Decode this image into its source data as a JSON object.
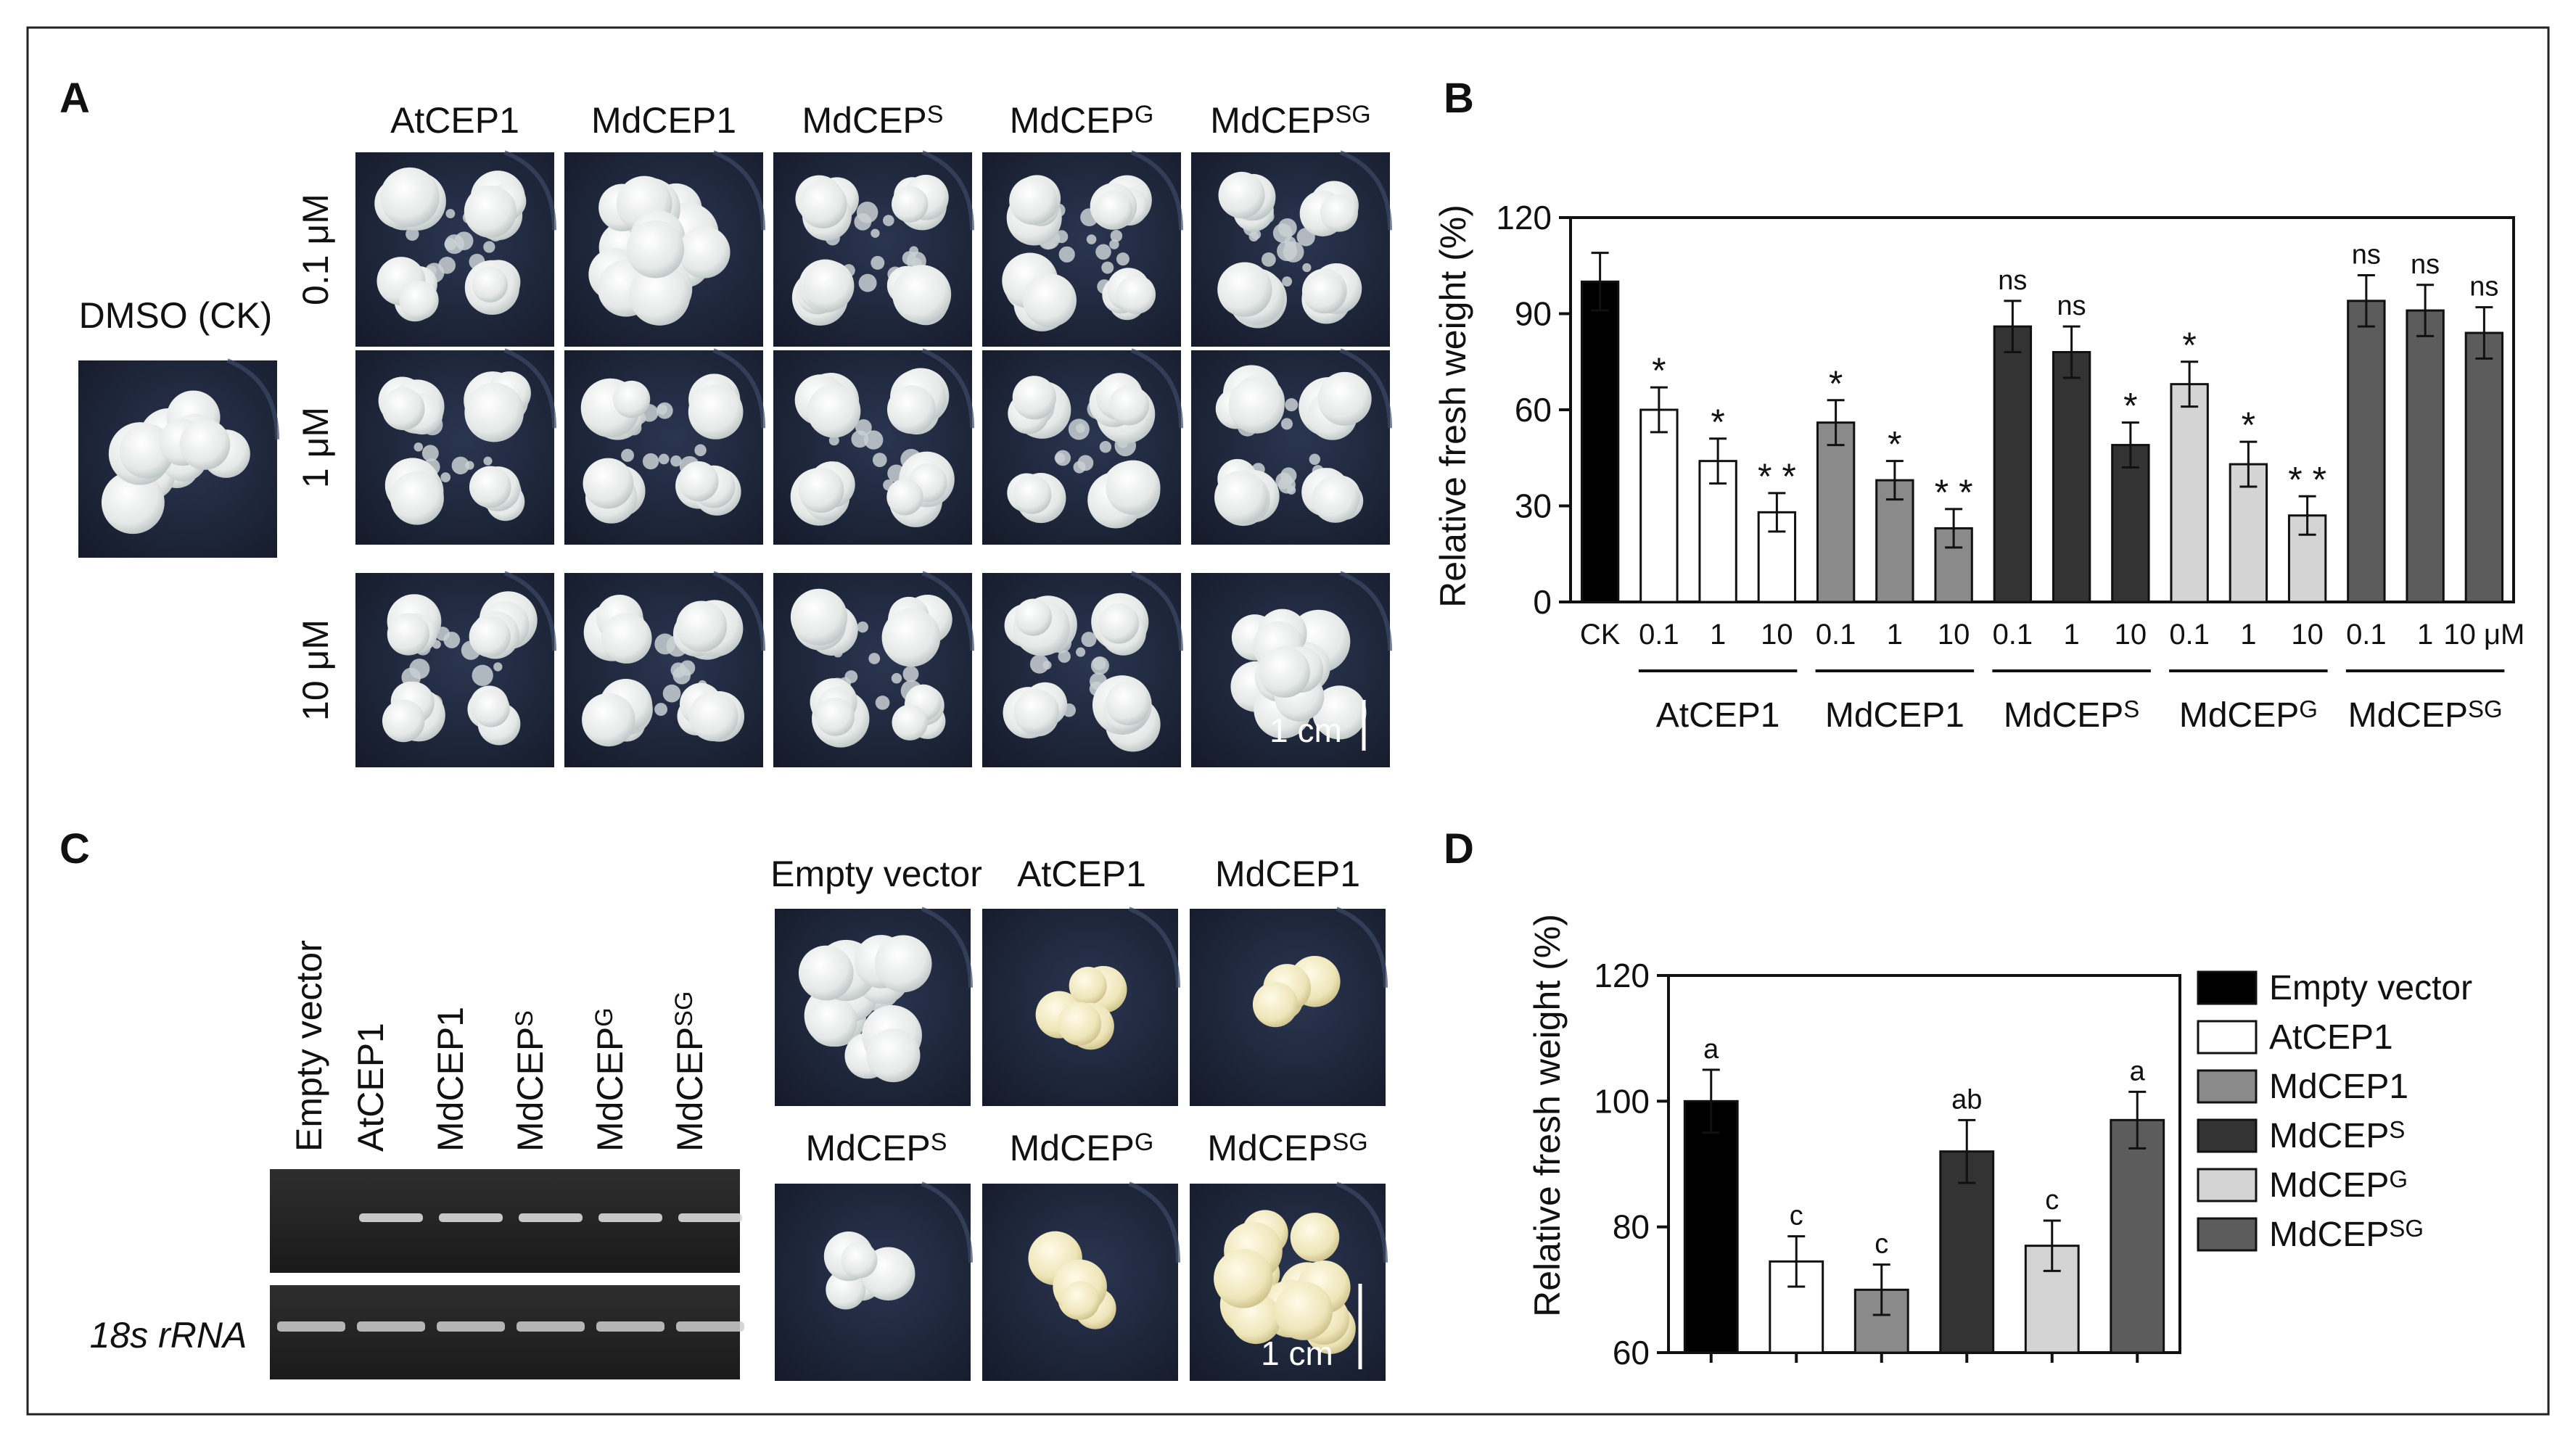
{
  "panel_letters": [
    "A",
    "B",
    "C",
    "D"
  ],
  "panelA": {
    "columns": [
      "AtCEP1",
      "MdCEP1",
      "MdCEPS",
      "MdCEPG",
      "MdCEPSG"
    ],
    "rows": [
      "0.1 μM",
      "1 μM",
      "10 μM"
    ],
    "control_label": "DMSO (CK)",
    "scale_label": "1 cm",
    "photo_colors": {
      "background": "#1c2436",
      "callus": "#e6e9e7"
    }
  },
  "panelC": {
    "lane_labels": [
      "Empty vector",
      "AtCEP1",
      "MdCEP1",
      "MdCEPS",
      "MdCEPG",
      "MdCEPSG"
    ],
    "gel_row_label": "18s rRNA",
    "photo_labels_top": [
      "Empty vector",
      "AtCEP1",
      "MdCEP1"
    ],
    "photo_labels_bottom": [
      "MdCEPS",
      "MdCEPG",
      "MdCEPSG"
    ],
    "scale_label": "1 cm"
  },
  "chart_data": [
    {
      "type": "bar",
      "panel": "B",
      "ylabel": "Relative fresh weight (%)",
      "ylim": [
        0,
        120
      ],
      "yticks": [
        0,
        30,
        60,
        90,
        120
      ],
      "tick_labels": [
        "CK",
        "0.1",
        "1",
        "10",
        "0.1",
        "1",
        "10",
        "0.1",
        "1",
        "10",
        "0.1",
        "1",
        "10",
        "0.1",
        "1",
        "10 μM"
      ],
      "groups": [
        "AtCEP1",
        "MdCEP1",
        "MdCEPS",
        "MdCEPG",
        "MdCEPSG"
      ],
      "values": [
        100,
        60,
        44,
        28,
        56,
        38,
        23,
        86,
        78,
        49,
        68,
        43,
        27,
        94,
        91,
        84
      ],
      "errors": [
        9,
        7,
        7,
        6,
        7,
        6,
        6,
        8,
        8,
        7,
        7,
        7,
        6,
        8,
        8,
        8
      ],
      "annotations": [
        "",
        "*",
        "*",
        "* *",
        "*",
        "*",
        "* *",
        "ns",
        "ns",
        "*",
        "*",
        "*",
        "* *",
        "ns",
        "ns",
        "ns"
      ],
      "colors": [
        "#000000",
        "#ffffff",
        "#ffffff",
        "#ffffff",
        "#8a8a8a",
        "#8a8a8a",
        "#8a8a8a",
        "#333333",
        "#333333",
        "#333333",
        "#d4d4d4",
        "#d4d4d4",
        "#d4d4d4",
        "#5c5c5c",
        "#5c5c5c",
        "#5c5c5c"
      ]
    },
    {
      "type": "bar",
      "panel": "D",
      "ylabel": "Relative fresh weight (%)",
      "ylim": [
        60,
        120
      ],
      "yticks": [
        60,
        80,
        100,
        120
      ],
      "categories": [
        "Empty vector",
        "AtCEP1",
        "MdCEP1",
        "MdCEPS",
        "MdCEPG",
        "MdCEPSG"
      ],
      "values": [
        100,
        74.5,
        70,
        92,
        77,
        97
      ],
      "errors": [
        5,
        4,
        4,
        5,
        4,
        4.5
      ],
      "annotations": [
        "a",
        "c",
        "c",
        "ab",
        "c",
        "a"
      ],
      "colors": [
        "#000000",
        "#ffffff",
        "#8a8a8a",
        "#333333",
        "#d4d4d4",
        "#5c5c5c"
      ],
      "legend": {
        "placement": "right",
        "entries": [
          "Empty vector",
          "AtCEP1",
          "MdCEP1",
          "MdCEPS",
          "MdCEPG",
          "MdCEPSG"
        ]
      }
    }
  ]
}
